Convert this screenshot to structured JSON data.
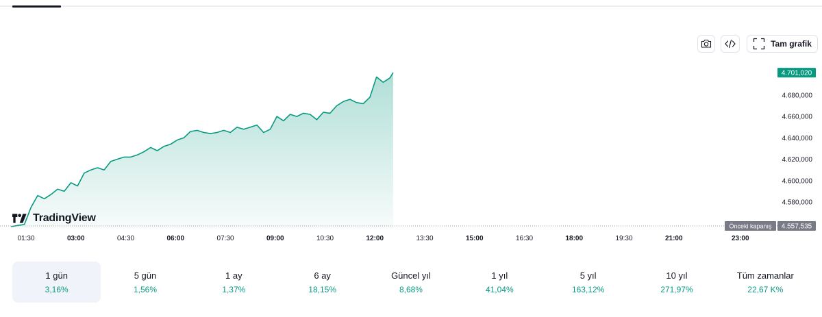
{
  "toolbar": {
    "camera_icon": "camera-icon",
    "embed_icon": "code-icon",
    "fullscreen_icon": "fullscreen-icon",
    "full_chart_label": "Tam grafik"
  },
  "brand": {
    "wordmark": "TradingView"
  },
  "periods": [
    {
      "label": "1 gün",
      "value": "3,16%",
      "active": true
    },
    {
      "label": "5 gün",
      "value": "1,56%"
    },
    {
      "label": "1 ay",
      "value": "1,37%"
    },
    {
      "label": "6 ay",
      "value": "18,15%"
    },
    {
      "label": "Güncel yıl",
      "value": "8,68%"
    },
    {
      "label": "1 yıl",
      "value": "41,04%"
    },
    {
      "label": "5 yıl",
      "value": "163,12%"
    },
    {
      "label": "10 yıl",
      "value": "271,97%"
    },
    {
      "label": "Tüm zamanlar",
      "value": "22,67 K%"
    }
  ],
  "colors": {
    "line": "#089981",
    "up_text": "#089981",
    "last_price_bg": "#089981",
    "prev_close_bg": "#787b86"
  },
  "chart_data": {
    "type": "area",
    "x_ticks": [
      {
        "label": "01:30",
        "bold": false
      },
      {
        "label": "03:00",
        "bold": true
      },
      {
        "label": "04:30",
        "bold": false
      },
      {
        "label": "06:00",
        "bold": true
      },
      {
        "label": "07:30",
        "bold": false
      },
      {
        "label": "09:00",
        "bold": true
      },
      {
        "label": "10:30",
        "bold": false
      },
      {
        "label": "12:00",
        "bold": true
      },
      {
        "label": "13:30",
        "bold": false
      },
      {
        "label": "15:00",
        "bold": true
      },
      {
        "label": "16:30",
        "bold": false
      },
      {
        "label": "18:00",
        "bold": true
      },
      {
        "label": "19:30",
        "bold": false
      },
      {
        "label": "21:00",
        "bold": true
      },
      {
        "label": "23:00",
        "bold": true
      }
    ],
    "y_ticks": [
      "4.580,000",
      "4.600,000",
      "4.620,000",
      "4.640,000",
      "4.660,000",
      "4.680,000"
    ],
    "y_range": [
      4555,
      4703
    ],
    "last_price_label": "4.701,020",
    "last_price": 4701.02,
    "previous_close_title": "Önceki kapanış",
    "previous_close_label": "4.557,535",
    "previous_close": 4557.535,
    "series": [
      {
        "points": [
          [
            "01:03",
            4557
          ],
          [
            "01:15",
            4558
          ],
          [
            "01:27",
            4559
          ],
          [
            "01:39",
            4575
          ],
          [
            "01:51",
            4586
          ],
          [
            "02:03",
            4583
          ],
          [
            "02:15",
            4587
          ],
          [
            "02:27",
            4592
          ],
          [
            "02:39",
            4590
          ],
          [
            "02:51",
            4598
          ],
          [
            "03:03",
            4595
          ],
          [
            "03:15",
            4607
          ],
          [
            "03:27",
            4610
          ],
          [
            "03:39",
            4612
          ],
          [
            "03:51",
            4610
          ],
          [
            "04:03",
            4618
          ],
          [
            "04:15",
            4620
          ],
          [
            "04:27",
            4622
          ],
          [
            "04:39",
            4622
          ],
          [
            "04:51",
            4624
          ],
          [
            "05:03",
            4627
          ],
          [
            "05:15",
            4631
          ],
          [
            "05:27",
            4628
          ],
          [
            "05:39",
            4632
          ],
          [
            "05:51",
            4634
          ],
          [
            "06:03",
            4638
          ],
          [
            "06:15",
            4640
          ],
          [
            "06:27",
            4646
          ],
          [
            "06:39",
            4647
          ],
          [
            "06:51",
            4645
          ],
          [
            "07:03",
            4644
          ],
          [
            "07:15",
            4645
          ],
          [
            "07:27",
            4647
          ],
          [
            "07:39",
            4645
          ],
          [
            "07:51",
            4650
          ],
          [
            "08:03",
            4648
          ],
          [
            "08:15",
            4650
          ],
          [
            "08:27",
            4652
          ],
          [
            "08:39",
            4645
          ],
          [
            "08:51",
            4648
          ],
          [
            "09:03",
            4660
          ],
          [
            "09:15",
            4656
          ],
          [
            "09:27",
            4662
          ],
          [
            "09:39",
            4660
          ],
          [
            "09:51",
            4663
          ],
          [
            "10:03",
            4662
          ],
          [
            "10:15",
            4657
          ],
          [
            "10:27",
            4664
          ],
          [
            "10:39",
            4663
          ],
          [
            "10:51",
            4670
          ],
          [
            "11:03",
            4674
          ],
          [
            "11:15",
            4676
          ],
          [
            "11:27",
            4673
          ],
          [
            "11:39",
            4672
          ],
          [
            "11:51",
            4678
          ],
          [
            "12:03",
            4697
          ],
          [
            "12:15",
            4692
          ],
          [
            "12:27",
            4696
          ],
          [
            "12:33",
            4701
          ]
        ]
      }
    ]
  }
}
